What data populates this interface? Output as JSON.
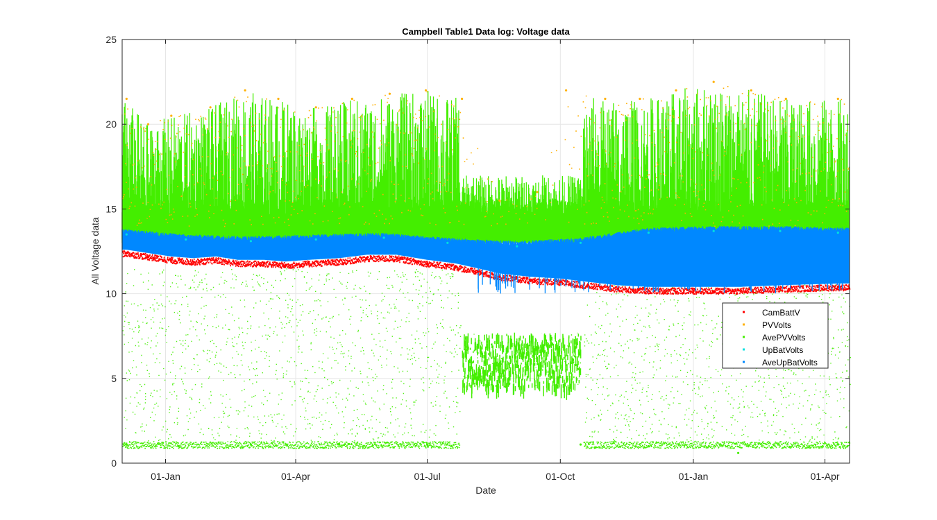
{
  "chart_data": {
    "type": "scatter",
    "title": "Campbell Table1 Data log: Voltage data",
    "xlabel": "Date",
    "ylabel": "All Voltage data",
    "x_axis_type": "date",
    "xlim": [
      "2018-12-02",
      "2020-04-18"
    ],
    "ylim": [
      0,
      25
    ],
    "x_ticks": [
      {
        "date": "2019-01-01",
        "label": "01-Jan"
      },
      {
        "date": "2019-04-01",
        "label": "01-Apr"
      },
      {
        "date": "2019-07-01",
        "label": "01-Jul"
      },
      {
        "date": "2019-10-01",
        "label": "01-Oct"
      },
      {
        "date": "2020-01-01",
        "label": "01-Jan"
      },
      {
        "date": "2020-04-01",
        "label": "01-Apr"
      }
    ],
    "y_ticks": [
      "0",
      "5",
      "10",
      "15",
      "20",
      "25"
    ],
    "grid": true,
    "legend_position": "right",
    "series": [
      {
        "name": "CamBattV",
        "color": "#ff0000",
        "points": [
          [
            "2018-12-05",
            12.4
          ],
          [
            "2018-12-20",
            12.2
          ],
          [
            "2019-01-05",
            12.0
          ],
          [
            "2019-01-20",
            11.9
          ],
          [
            "2019-02-05",
            12.0
          ],
          [
            "2019-02-20",
            11.8
          ],
          [
            "2019-03-10",
            11.8
          ],
          [
            "2019-03-25",
            11.7
          ],
          [
            "2019-04-10",
            11.8
          ],
          [
            "2019-05-01",
            11.9
          ],
          [
            "2019-05-20",
            12.1
          ],
          [
            "2019-06-10",
            12.1
          ],
          [
            "2019-07-01",
            11.8
          ],
          [
            "2019-07-20",
            11.6
          ],
          [
            "2019-08-05",
            11.3
          ],
          [
            "2019-08-20",
            11.0
          ],
          [
            "2019-09-10",
            10.8
          ],
          [
            "2019-10-01",
            10.7
          ],
          [
            "2019-10-20",
            10.5
          ],
          [
            "2019-11-10",
            10.3
          ],
          [
            "2019-12-01",
            10.2
          ],
          [
            "2020-01-01",
            10.2
          ],
          [
            "2020-02-01",
            10.2
          ],
          [
            "2020-03-01",
            10.3
          ],
          [
            "2020-04-10",
            10.4
          ]
        ]
      },
      {
        "name": "PVVolts",
        "color": "#ffb000",
        "points": [
          [
            "2018-12-05",
            21.5
          ],
          [
            "2018-12-20",
            20.0
          ],
          [
            "2019-01-05",
            20.5
          ],
          [
            "2019-02-01",
            21.0
          ],
          [
            "2019-02-25",
            22.0
          ],
          [
            "2019-03-20",
            21.5
          ],
          [
            "2019-04-15",
            21.0
          ],
          [
            "2019-05-10",
            21.5
          ],
          [
            "2019-06-05",
            21.8
          ],
          [
            "2019-06-30",
            22.0
          ],
          [
            "2019-07-25",
            21.5
          ],
          [
            "2019-08-20",
            15.5
          ],
          [
            "2019-09-15",
            16.0
          ],
          [
            "2019-10-05",
            22.0
          ],
          [
            "2019-11-01",
            21.5
          ],
          [
            "2019-11-25",
            21.5
          ],
          [
            "2019-12-20",
            22.0
          ],
          [
            "2020-01-15",
            22.5
          ],
          [
            "2020-02-10",
            22.0
          ],
          [
            "2020-03-05",
            21.5
          ],
          [
            "2020-04-10",
            21.5
          ]
        ]
      },
      {
        "name": "AvePVVolts",
        "color": "#44ee00",
        "points": [
          [
            "2018-12-05",
            1.1
          ],
          [
            "2018-12-20",
            14.5
          ],
          [
            "2019-01-10",
            1.0
          ],
          [
            "2019-02-01",
            14.0
          ],
          [
            "2019-03-01",
            1.1
          ],
          [
            "2019-04-01",
            14.2
          ],
          [
            "2019-05-01",
            1.1
          ],
          [
            "2019-06-01",
            14.5
          ],
          [
            "2019-07-01",
            1.1
          ],
          [
            "2019-07-20",
            14.0
          ],
          [
            "2019-08-10",
            6.5
          ],
          [
            "2019-09-01",
            6.0
          ],
          [
            "2019-09-25",
            7.0
          ],
          [
            "2019-10-15",
            1.1
          ],
          [
            "2019-11-05",
            13.5
          ],
          [
            "2019-12-01",
            1.0
          ],
          [
            "2020-01-01",
            14.5
          ],
          [
            "2020-02-01",
            0.6
          ],
          [
            "2020-03-01",
            14.0
          ],
          [
            "2020-04-10",
            1.1
          ]
        ]
      },
      {
        "name": "UpBatVolts",
        "color": "#00e0e0",
        "points": [
          [
            "2018-12-05",
            13.5
          ],
          [
            "2019-01-15",
            13.2
          ],
          [
            "2019-03-01",
            13.1
          ],
          [
            "2019-04-15",
            13.2
          ],
          [
            "2019-06-01",
            13.3
          ],
          [
            "2019-07-15",
            13.0
          ],
          [
            "2019-09-01",
            12.8
          ],
          [
            "2019-10-15",
            13.0
          ],
          [
            "2019-12-01",
            13.6
          ],
          [
            "2020-01-15",
            13.7
          ],
          [
            "2020-03-01",
            13.7
          ],
          [
            "2020-04-10",
            13.6
          ]
        ]
      },
      {
        "name": "AveUpBatVolts",
        "color": "#0088ff",
        "points": [
          [
            "2018-12-05",
            13.0
          ],
          [
            "2019-01-15",
            12.6
          ],
          [
            "2019-03-01",
            12.6
          ],
          [
            "2019-04-15",
            12.7
          ],
          [
            "2019-06-01",
            12.8
          ],
          [
            "2019-07-15",
            12.4
          ],
          [
            "2019-09-01",
            11.8
          ],
          [
            "2019-10-15",
            12.2
          ],
          [
            "2019-12-01",
            12.0
          ],
          [
            "2020-01-15",
            12.2
          ],
          [
            "2020-03-01",
            12.3
          ],
          [
            "2020-04-10",
            12.2
          ]
        ]
      }
    ]
  }
}
